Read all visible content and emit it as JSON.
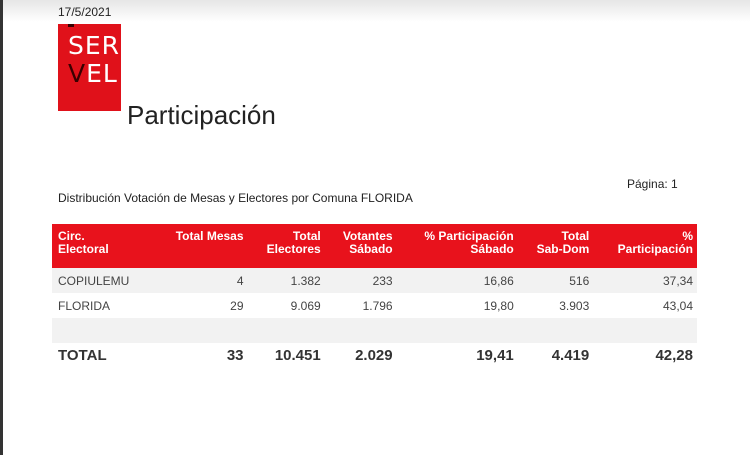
{
  "date": "17/5/2021",
  "logo": {
    "line1": "SER",
    "line2_v": "V",
    "line2_rest": "EL"
  },
  "title": "Participación",
  "page_label": "Página: 1",
  "subtitle": "Distribución Votación de Mesas y Electores por Comuna FLORIDA",
  "colors": {
    "accent": "#e8121c"
  },
  "table": {
    "headers": [
      [
        "Circ.",
        "Electoral"
      ],
      [
        "Total Mesas",
        ""
      ],
      [
        "Total",
        "Electores"
      ],
      [
        "Votantes",
        "Sábado"
      ],
      [
        "% Participación",
        "Sábado"
      ],
      [
        "Total",
        "Sab-Dom"
      ],
      [
        "%",
        "Participación"
      ]
    ],
    "rows": [
      [
        "COPIULEMU",
        "4",
        "1.382",
        "233",
        "16,86",
        "516",
        "37,34"
      ],
      [
        "FLORIDA",
        "29",
        "9.069",
        "1.796",
        "19,80",
        "3.903",
        "43,04"
      ]
    ],
    "total": [
      "TOTAL",
      "33",
      "10.451",
      "2.029",
      "19,41",
      "4.419",
      "42,28"
    ]
  }
}
